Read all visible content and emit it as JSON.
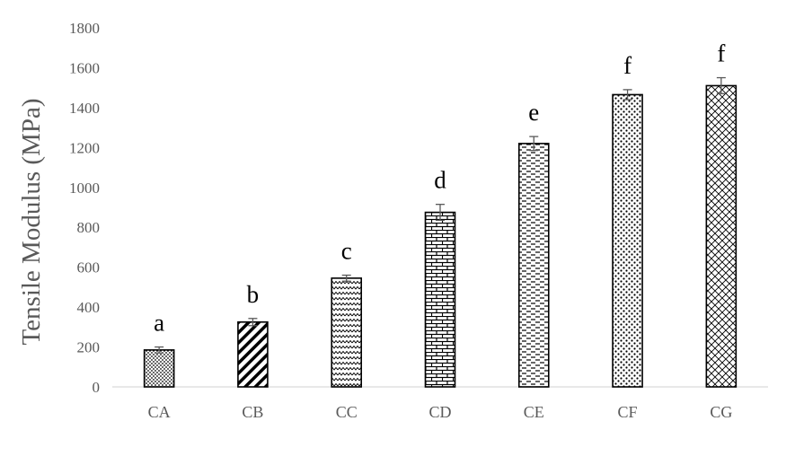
{
  "chart_data": {
    "type": "bar",
    "ylabel": "Tensile Modulus (MPa)",
    "xlabel": "",
    "ylim": [
      0,
      1800
    ],
    "yticks": [
      0,
      200,
      400,
      600,
      800,
      1000,
      1200,
      1400,
      1600,
      1800
    ],
    "grid": false,
    "categories": [
      "CA",
      "CB",
      "CC",
      "CD",
      "CE",
      "CF",
      "CG"
    ],
    "values": [
      185,
      325,
      545,
      875,
      1220,
      1465,
      1510
    ],
    "errors": [
      15,
      18,
      15,
      40,
      35,
      25,
      40
    ],
    "annotations": [
      "a",
      "b",
      "c",
      "d",
      "e",
      "f",
      "f"
    ],
    "patterns": [
      "dots-dense",
      "diagonal-stripes",
      "zigzag",
      "brick",
      "dashes",
      "dots-sparse",
      "crosshatch-diagonal"
    ],
    "colors": {
      "bar_fill": "#ffffff",
      "bar_stroke": "#000000",
      "axis": "#d9d9d9",
      "text": "#595959",
      "annotation": "#000000"
    }
  }
}
